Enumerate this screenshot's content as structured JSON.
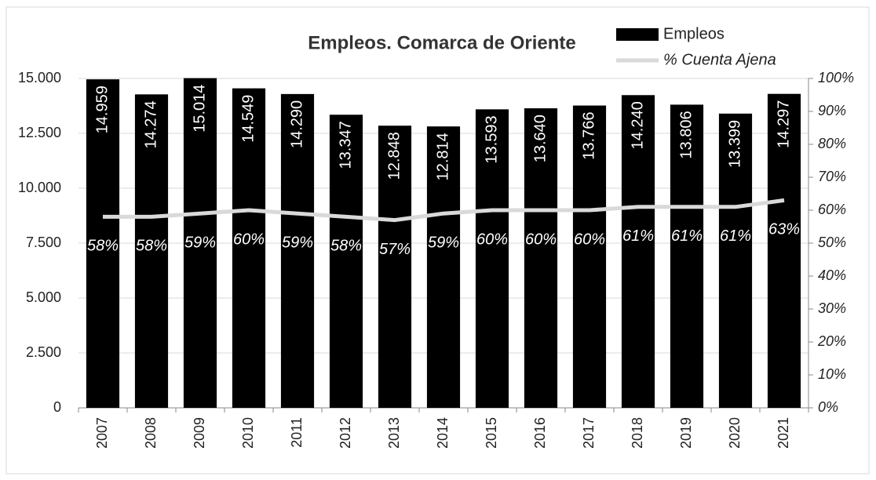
{
  "chart_data": {
    "type": "bar",
    "title": "Empleos. Comarca de Oriente",
    "categories": [
      "2007",
      "2008",
      "2009",
      "2010",
      "2011",
      "2012",
      "2013",
      "2014",
      "2015",
      "2016",
      "2017",
      "2018",
      "2019",
      "2020",
      "2021"
    ],
    "series": [
      {
        "name": "Empleos",
        "color": "#000000",
        "type": "bar",
        "values": [
          14959,
          14274,
          15014,
          14549,
          14290,
          13347,
          12848,
          12814,
          13593,
          13640,
          13766,
          14240,
          13806,
          13399,
          14297
        ],
        "value_labels": [
          "14.959",
          "14.274",
          "15.014",
          "14.549",
          "14.290",
          "13.347",
          "12.848",
          "12.814",
          "13.593",
          "13.640",
          "13.766",
          "14.240",
          "13.806",
          "13.399",
          "14.297"
        ]
      },
      {
        "name": "% Cuenta Ajena",
        "color": "#d9d9d9",
        "type": "line",
        "axis": "y2",
        "values": [
          58,
          58,
          59,
          60,
          59,
          58,
          57,
          59,
          60,
          60,
          60,
          61,
          61,
          61,
          63
        ],
        "value_labels": [
          "58%",
          "58%",
          "59%",
          "60%",
          "59%",
          "58%",
          "57%",
          "59%",
          "60%",
          "60%",
          "60%",
          "61%",
          "61%",
          "61%",
          "63%"
        ]
      }
    ],
    "ylim": [
      0,
      15000
    ],
    "yticks": [
      0,
      {
        "value": 2500,
        "label": "2.500"
      },
      {
        "value": 5000,
        "label": "5.000"
      },
      {
        "value": 7500,
        "label": "7.500"
      },
      {
        "value": 10000,
        "label": "10.000"
      },
      {
        "value": 12500,
        "label": "12.500"
      },
      {
        "value": 15000,
        "label": "15.000"
      }
    ],
    "y2lim": [
      0,
      100
    ],
    "y2ticks": [
      {
        "value": 0,
        "label": "0%"
      },
      {
        "value": 10,
        "label": "10%"
      },
      {
        "value": 20,
        "label": "20%"
      },
      {
        "value": 30,
        "label": "30%"
      },
      {
        "value": 40,
        "label": "40%"
      },
      {
        "value": 50,
        "label": "50%"
      },
      {
        "value": 60,
        "label": "60%"
      },
      {
        "value": 70,
        "label": "70%"
      },
      {
        "value": 80,
        "label": "80%"
      },
      {
        "value": 90,
        "label": "90%"
      },
      {
        "value": 100,
        "label": "100%"
      }
    ],
    "grid": true,
    "legend": "top-right"
  }
}
